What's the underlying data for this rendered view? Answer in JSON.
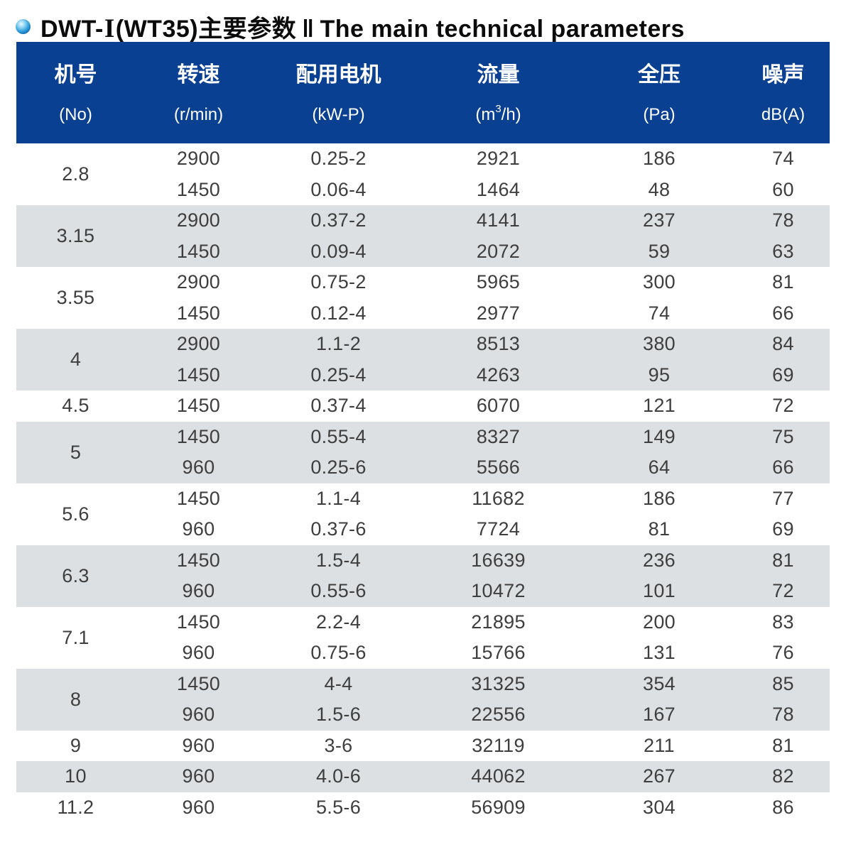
{
  "title": {
    "prefix": "DWT-",
    "roman": "I",
    "model": "(WT35)主要参数",
    "separator": "‖",
    "english": "The main technical parameters"
  },
  "colors": {
    "header_bg": "#0a4092",
    "row_alt_bg": "#dce0e3",
    "body_text": "#3e3e3e"
  },
  "table": {
    "columns": [
      {
        "zh": "机号",
        "en": "(No)"
      },
      {
        "zh": "转速",
        "en": "(r/min)"
      },
      {
        "zh": "配用电机",
        "en": "(kW-P)"
      },
      {
        "zh": "流量",
        "en_base": "(m",
        "en_sup": "3",
        "en_rest": "/h)"
      },
      {
        "zh": "全压",
        "en": "(Pa)"
      },
      {
        "zh": "噪声",
        "en": "dB(A)"
      }
    ],
    "column_fields": [
      "speed",
      "motor",
      "flow",
      "pressure",
      "noise"
    ],
    "groups": [
      {
        "no": "2.8",
        "shade": "white",
        "rows": [
          [
            "2900",
            "0.25-2",
            "2921",
            "186",
            "74"
          ],
          [
            "1450",
            "0.06-4",
            "1464",
            "48",
            "60"
          ]
        ]
      },
      {
        "no": "3.15",
        "shade": "gray",
        "rows": [
          [
            "2900",
            "0.37-2",
            "4141",
            "237",
            "78"
          ],
          [
            "1450",
            "0.09-4",
            "2072",
            "59",
            "63"
          ]
        ]
      },
      {
        "no": "3.55",
        "shade": "white",
        "rows": [
          [
            "2900",
            "0.75-2",
            "5965",
            "300",
            "81"
          ],
          [
            "1450",
            "0.12-4",
            "2977",
            "74",
            "66"
          ]
        ]
      },
      {
        "no": "4",
        "shade": "gray",
        "rows": [
          [
            "2900",
            "1.1-2",
            "8513",
            "380",
            "84"
          ],
          [
            "1450",
            "0.25-4",
            "4263",
            "95",
            "69"
          ]
        ]
      },
      {
        "no": "4.5",
        "shade": "white",
        "rows": [
          [
            "1450",
            "0.37-4",
            "6070",
            "121",
            "72"
          ]
        ]
      },
      {
        "no": "5",
        "shade": "gray",
        "rows": [
          [
            "1450",
            "0.55-4",
            "8327",
            "149",
            "75"
          ],
          [
            "960",
            "0.25-6",
            "5566",
            "64",
            "66"
          ]
        ]
      },
      {
        "no": "5.6",
        "shade": "white",
        "rows": [
          [
            "1450",
            "1.1-4",
            "11682",
            "186",
            "77"
          ],
          [
            "960",
            "0.37-6",
            "7724",
            "81",
            "69"
          ]
        ]
      },
      {
        "no": "6.3",
        "shade": "gray",
        "rows": [
          [
            "1450",
            "1.5-4",
            "16639",
            "236",
            "81"
          ],
          [
            "960",
            "0.55-6",
            "10472",
            "101",
            "72"
          ]
        ]
      },
      {
        "no": "7.1",
        "shade": "white",
        "rows": [
          [
            "1450",
            "2.2-4",
            "21895",
            "200",
            "83"
          ],
          [
            "960",
            "0.75-6",
            "15766",
            "131",
            "76"
          ]
        ]
      },
      {
        "no": "8",
        "shade": "gray",
        "rows": [
          [
            "1450",
            "4-4",
            "31325",
            "354",
            "85"
          ],
          [
            "960",
            "1.5-6",
            "22556",
            "167",
            "78"
          ]
        ]
      },
      {
        "no": "9",
        "shade": "white",
        "rows": [
          [
            "960",
            "3-6",
            "32119",
            "211",
            "81"
          ]
        ]
      },
      {
        "no": "10",
        "shade": "gray",
        "rows": [
          [
            "960",
            "4.0-6",
            "44062",
            "267",
            "82"
          ]
        ]
      },
      {
        "no": "11.2",
        "shade": "white",
        "rows": [
          [
            "960",
            "5.5-6",
            "56909",
            "304",
            "86"
          ]
        ]
      }
    ]
  }
}
